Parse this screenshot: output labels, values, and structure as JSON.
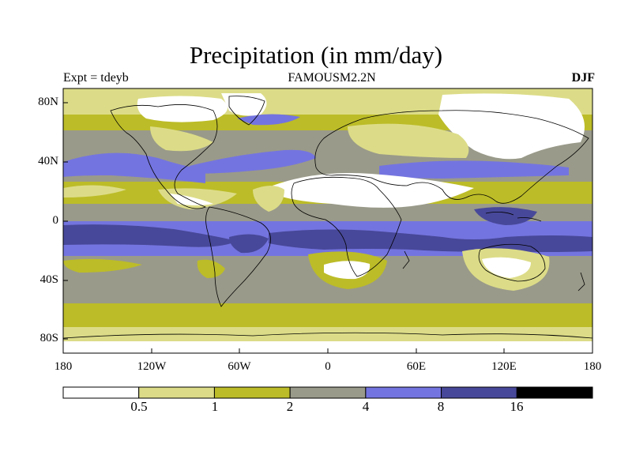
{
  "title": "Precipitation (in mm/day)",
  "experiment": "Expt = tdeyb",
  "model": "FAMOUSM2.2N",
  "season": "DJF",
  "lat_ticks": [
    "80N",
    "40N",
    "0",
    "40S",
    "80S"
  ],
  "lon_ticks": [
    "180",
    "120W",
    "60W",
    "0",
    "60E",
    "120E",
    "180"
  ],
  "colorbar": {
    "labels": [
      "0.5",
      "1",
      "2",
      "4",
      "8",
      "16"
    ],
    "colors": [
      "#ffffff",
      "#dcdc88",
      "#bcbc28",
      "#9a9a8a",
      "#7474e0",
      "#48489a",
      "#000000"
    ]
  },
  "colors": {
    "coast": "#000000"
  }
}
